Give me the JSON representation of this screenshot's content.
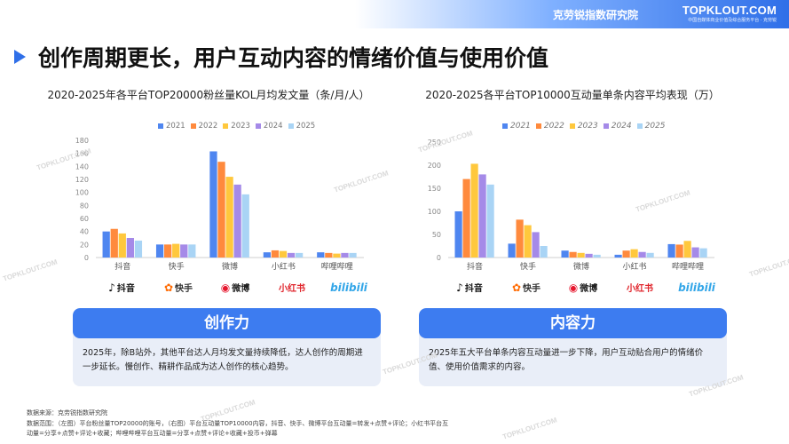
{
  "header": {
    "org": "克劳锐指数研究院",
    "brand": "TOPKLOUT.COM",
    "brand_tagline": "中国自媒体商业价值及综合服务平台 · 克劳锐"
  },
  "page_title": "创作周期更长，用户互动内容的情绪价值与使用价值",
  "watermark": "TOPKLOUT.COM",
  "colors": {
    "accent": "#2f6fe8",
    "card_bg": "#e9eef8",
    "card_head": "#3d7cf0"
  },
  "chart_data": [
    {
      "type": "bar",
      "title": "2020-2025年各平台TOP20000粉丝量KOL月均发文量（条/月/人）",
      "categories": [
        "抖音",
        "快手",
        "微博",
        "小红书",
        "哔哩哔哩"
      ],
      "series": [
        {
          "name": "2021",
          "color": "#4f86f0",
          "values": [
            40,
            20,
            163,
            8,
            8
          ]
        },
        {
          "name": "2022",
          "color": "#ff8a3d",
          "values": [
            44,
            20,
            147,
            11,
            7
          ]
        },
        {
          "name": "2023",
          "color": "#ffc83d",
          "values": [
            37,
            21,
            124,
            10,
            6
          ]
        },
        {
          "name": "2024",
          "color": "#a58ae8",
          "values": [
            30,
            20,
            112,
            7,
            7
          ]
        },
        {
          "name": "2025",
          "color": "#a9d4f5",
          "values": [
            26,
            20,
            97,
            7,
            7
          ]
        }
      ],
      "yticks": [
        0,
        20,
        40,
        60,
        80,
        100,
        120,
        140,
        160,
        180
      ],
      "ylim": [
        0,
        180
      ]
    },
    {
      "type": "bar",
      "title": "2020-2025各平台TOP10000互动量单条内容平均表现（万）",
      "categories": [
        "抖音",
        "快手",
        "微博",
        "小红书",
        "哔哩哔哩"
      ],
      "series": [
        {
          "name": "2021",
          "color": "#4f86f0",
          "values": [
            100,
            30,
            15,
            6,
            29
          ]
        },
        {
          "name": "2022",
          "color": "#ff8a3d",
          "values": [
            170,
            82,
            12,
            15,
            28
          ]
        },
        {
          "name": "2023",
          "color": "#ffc83d",
          "values": [
            203,
            70,
            10,
            18,
            36
          ]
        },
        {
          "name": "2024",
          "color": "#a58ae8",
          "values": [
            180,
            55,
            8,
            12,
            22
          ]
        },
        {
          "name": "2025",
          "color": "#a9d4f5",
          "values": [
            158,
            25,
            6,
            10,
            20
          ]
        }
      ],
      "yticks": [
        0,
        50,
        100,
        150,
        200,
        250
      ],
      "ylim": [
        0,
        250
      ]
    }
  ],
  "logos": [
    {
      "icon": "♪",
      "label": "抖音"
    },
    {
      "icon": "✿",
      "label": "快手"
    },
    {
      "icon": "◉",
      "label": "微博"
    },
    {
      "icon": "",
      "label": "小红书"
    },
    {
      "icon": "",
      "label": "bilibili"
    }
  ],
  "cards": {
    "left": {
      "title": "创作力",
      "text": "2025年，除B站外，其他平台达人月均发文量持续降低，达人创作的周期进一步延长。慢创作、精耕作品成为达人创作的核心趋势。"
    },
    "right": {
      "title": "内容力",
      "text": "2025年五大平台单条内容互动量进一步下降，用户互动贴合用户的情绪价值、使用价值需求的内容。"
    }
  },
  "footnote": {
    "line1": "数据来源：克劳锐指数研究院",
    "line2": "数据范围：（左图）平台粉丝量TOP20000的账号，（右图）平台互动量TOP10000内容，抖音、快手、微博平台互动量=转发+点赞+评论；小红书平台互",
    "line3": "动量=分享+点赞+评论+收藏；哔哩哔哩平台互动量=分享+点赞+评论+收藏+投币+弹幕"
  }
}
